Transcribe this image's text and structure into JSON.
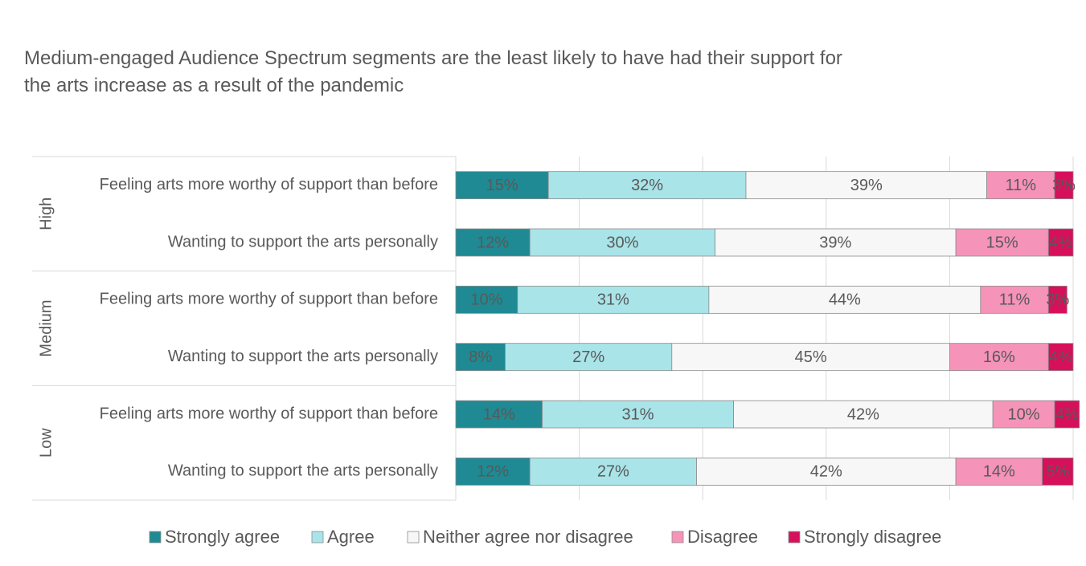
{
  "chart_data": {
    "type": "stacked_bar_horizontal",
    "title": "Medium-engaged Audience Spectrum segments are the least likely to have had their support for the arts increase as a result of the pandemic",
    "groups": [
      {
        "name": "High",
        "categories": [
          "Feeling arts more worthy of support than before",
          "Wanting to support the arts personally"
        ]
      },
      {
        "name": "Medium",
        "categories": [
          "Feeling arts more worthy of support than before",
          "Wanting to support the arts personally"
        ]
      },
      {
        "name": "Low",
        "categories": [
          "Feeling arts more worthy of support than before",
          "Wanting to support the arts personally"
        ]
      }
    ],
    "series": [
      {
        "name": "Strongly agree",
        "color": "#1f8a93",
        "label_color": "#ffffff",
        "values": [
          15,
          12,
          10,
          8,
          14,
          12
        ],
        "value_labels": [
          "15%",
          "12%",
          "10%",
          "8%",
          "14%",
          "12%"
        ]
      },
      {
        "name": "Agree",
        "color": "#a9e4e9",
        "label_color": "#595959",
        "values": [
          32,
          30,
          31,
          27,
          31,
          27
        ],
        "value_labels": [
          "32%",
          "30%",
          "31%",
          "27%",
          "31%",
          "27%"
        ]
      },
      {
        "name": "Neither agree nor disagree",
        "color": "#f7f7f7",
        "label_color": "#595959",
        "values": [
          39,
          39,
          44,
          45,
          42,
          42
        ],
        "value_labels": [
          "39%",
          "39%",
          "44%",
          "45%",
          "42%",
          "42%"
        ]
      },
      {
        "name": "Disagree",
        "color": "#f693b9",
        "label_color": "#ffffff",
        "values": [
          11,
          15,
          11,
          16,
          10,
          14
        ],
        "value_labels": [
          "11%",
          "15%",
          "11%",
          "16%",
          "10%",
          "14%"
        ]
      },
      {
        "name": "Strongly disagree",
        "color": "#d6105a",
        "label_color": "#ffffff",
        "values": [
          3,
          4,
          3,
          4,
          4,
          5
        ],
        "value_labels": [
          "3%",
          "4%",
          "3%",
          "4%",
          "4%",
          "5%"
        ]
      }
    ],
    "xlim": [
      0,
      100
    ],
    "xticks": [
      0,
      20,
      40,
      60,
      80,
      100
    ],
    "grid": true
  }
}
